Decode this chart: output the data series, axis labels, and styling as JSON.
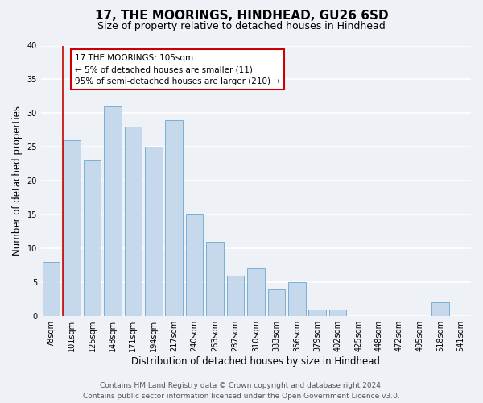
{
  "title": "17, THE MOORINGS, HINDHEAD, GU26 6SD",
  "subtitle": "Size of property relative to detached houses in Hindhead",
  "xlabel": "Distribution of detached houses by size in Hindhead",
  "ylabel": "Number of detached properties",
  "categories": [
    "78sqm",
    "101sqm",
    "125sqm",
    "148sqm",
    "171sqm",
    "194sqm",
    "217sqm",
    "240sqm",
    "263sqm",
    "287sqm",
    "310sqm",
    "333sqm",
    "356sqm",
    "379sqm",
    "402sqm",
    "425sqm",
    "448sqm",
    "472sqm",
    "495sqm",
    "518sqm",
    "541sqm"
  ],
  "values": [
    8,
    26,
    23,
    31,
    28,
    25,
    29,
    15,
    11,
    6,
    7,
    4,
    5,
    1,
    1,
    0,
    0,
    0,
    0,
    2,
    0
  ],
  "bar_color": "#c5d8ec",
  "bar_edge_color": "#7aafd4",
  "marker_line_color": "#cc0000",
  "annotation_box_text": [
    "17 THE MOORINGS: 105sqm",
    "← 5% of detached houses are smaller (11)",
    "95% of semi-detached houses are larger (210) →"
  ],
  "annotation_box_color": "#ffffff",
  "annotation_box_edge_color": "#cc0000",
  "ylim": [
    0,
    40
  ],
  "yticks": [
    0,
    5,
    10,
    15,
    20,
    25,
    30,
    35,
    40
  ],
  "footer_line1": "Contains HM Land Registry data © Crown copyright and database right 2024.",
  "footer_line2": "Contains public sector information licensed under the Open Government Licence v3.0.",
  "background_color": "#eef2f7",
  "grid_color": "#ffffff",
  "title_fontsize": 11,
  "subtitle_fontsize": 9,
  "axis_label_fontsize": 8.5,
  "tick_fontsize": 7,
  "annotation_fontsize": 7.5,
  "footer_fontsize": 6.5
}
